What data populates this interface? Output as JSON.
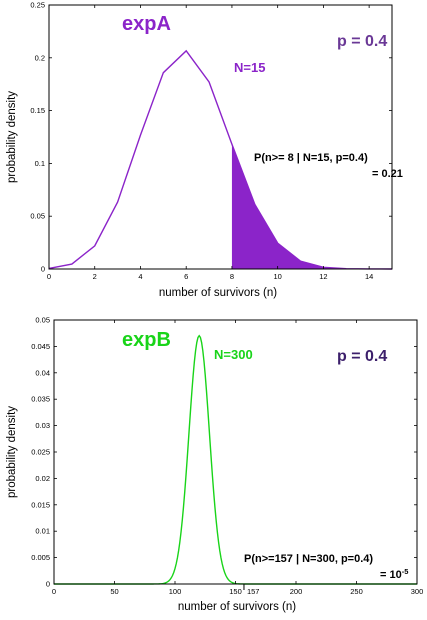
{
  "colors": {
    "expA": "#8b24c9",
    "expA_dark": "#6a3896",
    "expB": "#19d419",
    "expB_dark": "#3c1f6b"
  },
  "chart_data": [
    {
      "type": "line",
      "title": "expA",
      "p_label": "p = 0.4",
      "n_label": "N=15",
      "xlabel": "number of survivors (n)",
      "ylabel": "probability density",
      "xlim": [
        0,
        15
      ],
      "ylim": [
        0,
        0.25
      ],
      "xticks": [
        "0",
        "2",
        "4",
        "6",
        "8",
        "10",
        "12",
        "14"
      ],
      "yticks": [
        "0",
        "0.05",
        "0.1",
        "0.15",
        "0.2",
        "0.25"
      ],
      "x": [
        0,
        1,
        2,
        3,
        4,
        5,
        6,
        7,
        8,
        9,
        10,
        11,
        12,
        13,
        14,
        15
      ],
      "values": [
        0.0005,
        0.0047,
        0.0219,
        0.0634,
        0.1268,
        0.1859,
        0.2066,
        0.1771,
        0.1181,
        0.0612,
        0.0245,
        0.0074,
        0.0016,
        0.0003,
        3e-05,
        1e-06
      ],
      "shade_from": 8,
      "annotation_line1": "P(n>= 8 | N=15, p=0.4)",
      "annotation_line2": "= 0.21"
    },
    {
      "type": "line",
      "title": "expB",
      "p_label": "p = 0.4",
      "n_label": "N=300",
      "xlabel": "number of survivors (n)",
      "ylabel": "probability density",
      "xlim": [
        0,
        300
      ],
      "ylim": [
        0,
        0.05
      ],
      "xticks": [
        "0",
        "50",
        "100",
        "150",
        "200",
        "250",
        "300"
      ],
      "yticks": [
        "0",
        "0.005",
        "0.01",
        "0.015",
        "0.02",
        "0.025",
        "0.03",
        "0.035",
        "0.04",
        "0.045",
        "0.05"
      ],
      "mean": 120,
      "sd": 8.485,
      "marker_value": 157,
      "marker_label": "157",
      "annotation_line1": "P(n>=157 | N=300, p=0.4)",
      "annotation_line2_base": "= 10",
      "annotation_line2_exp": "-5"
    }
  ]
}
